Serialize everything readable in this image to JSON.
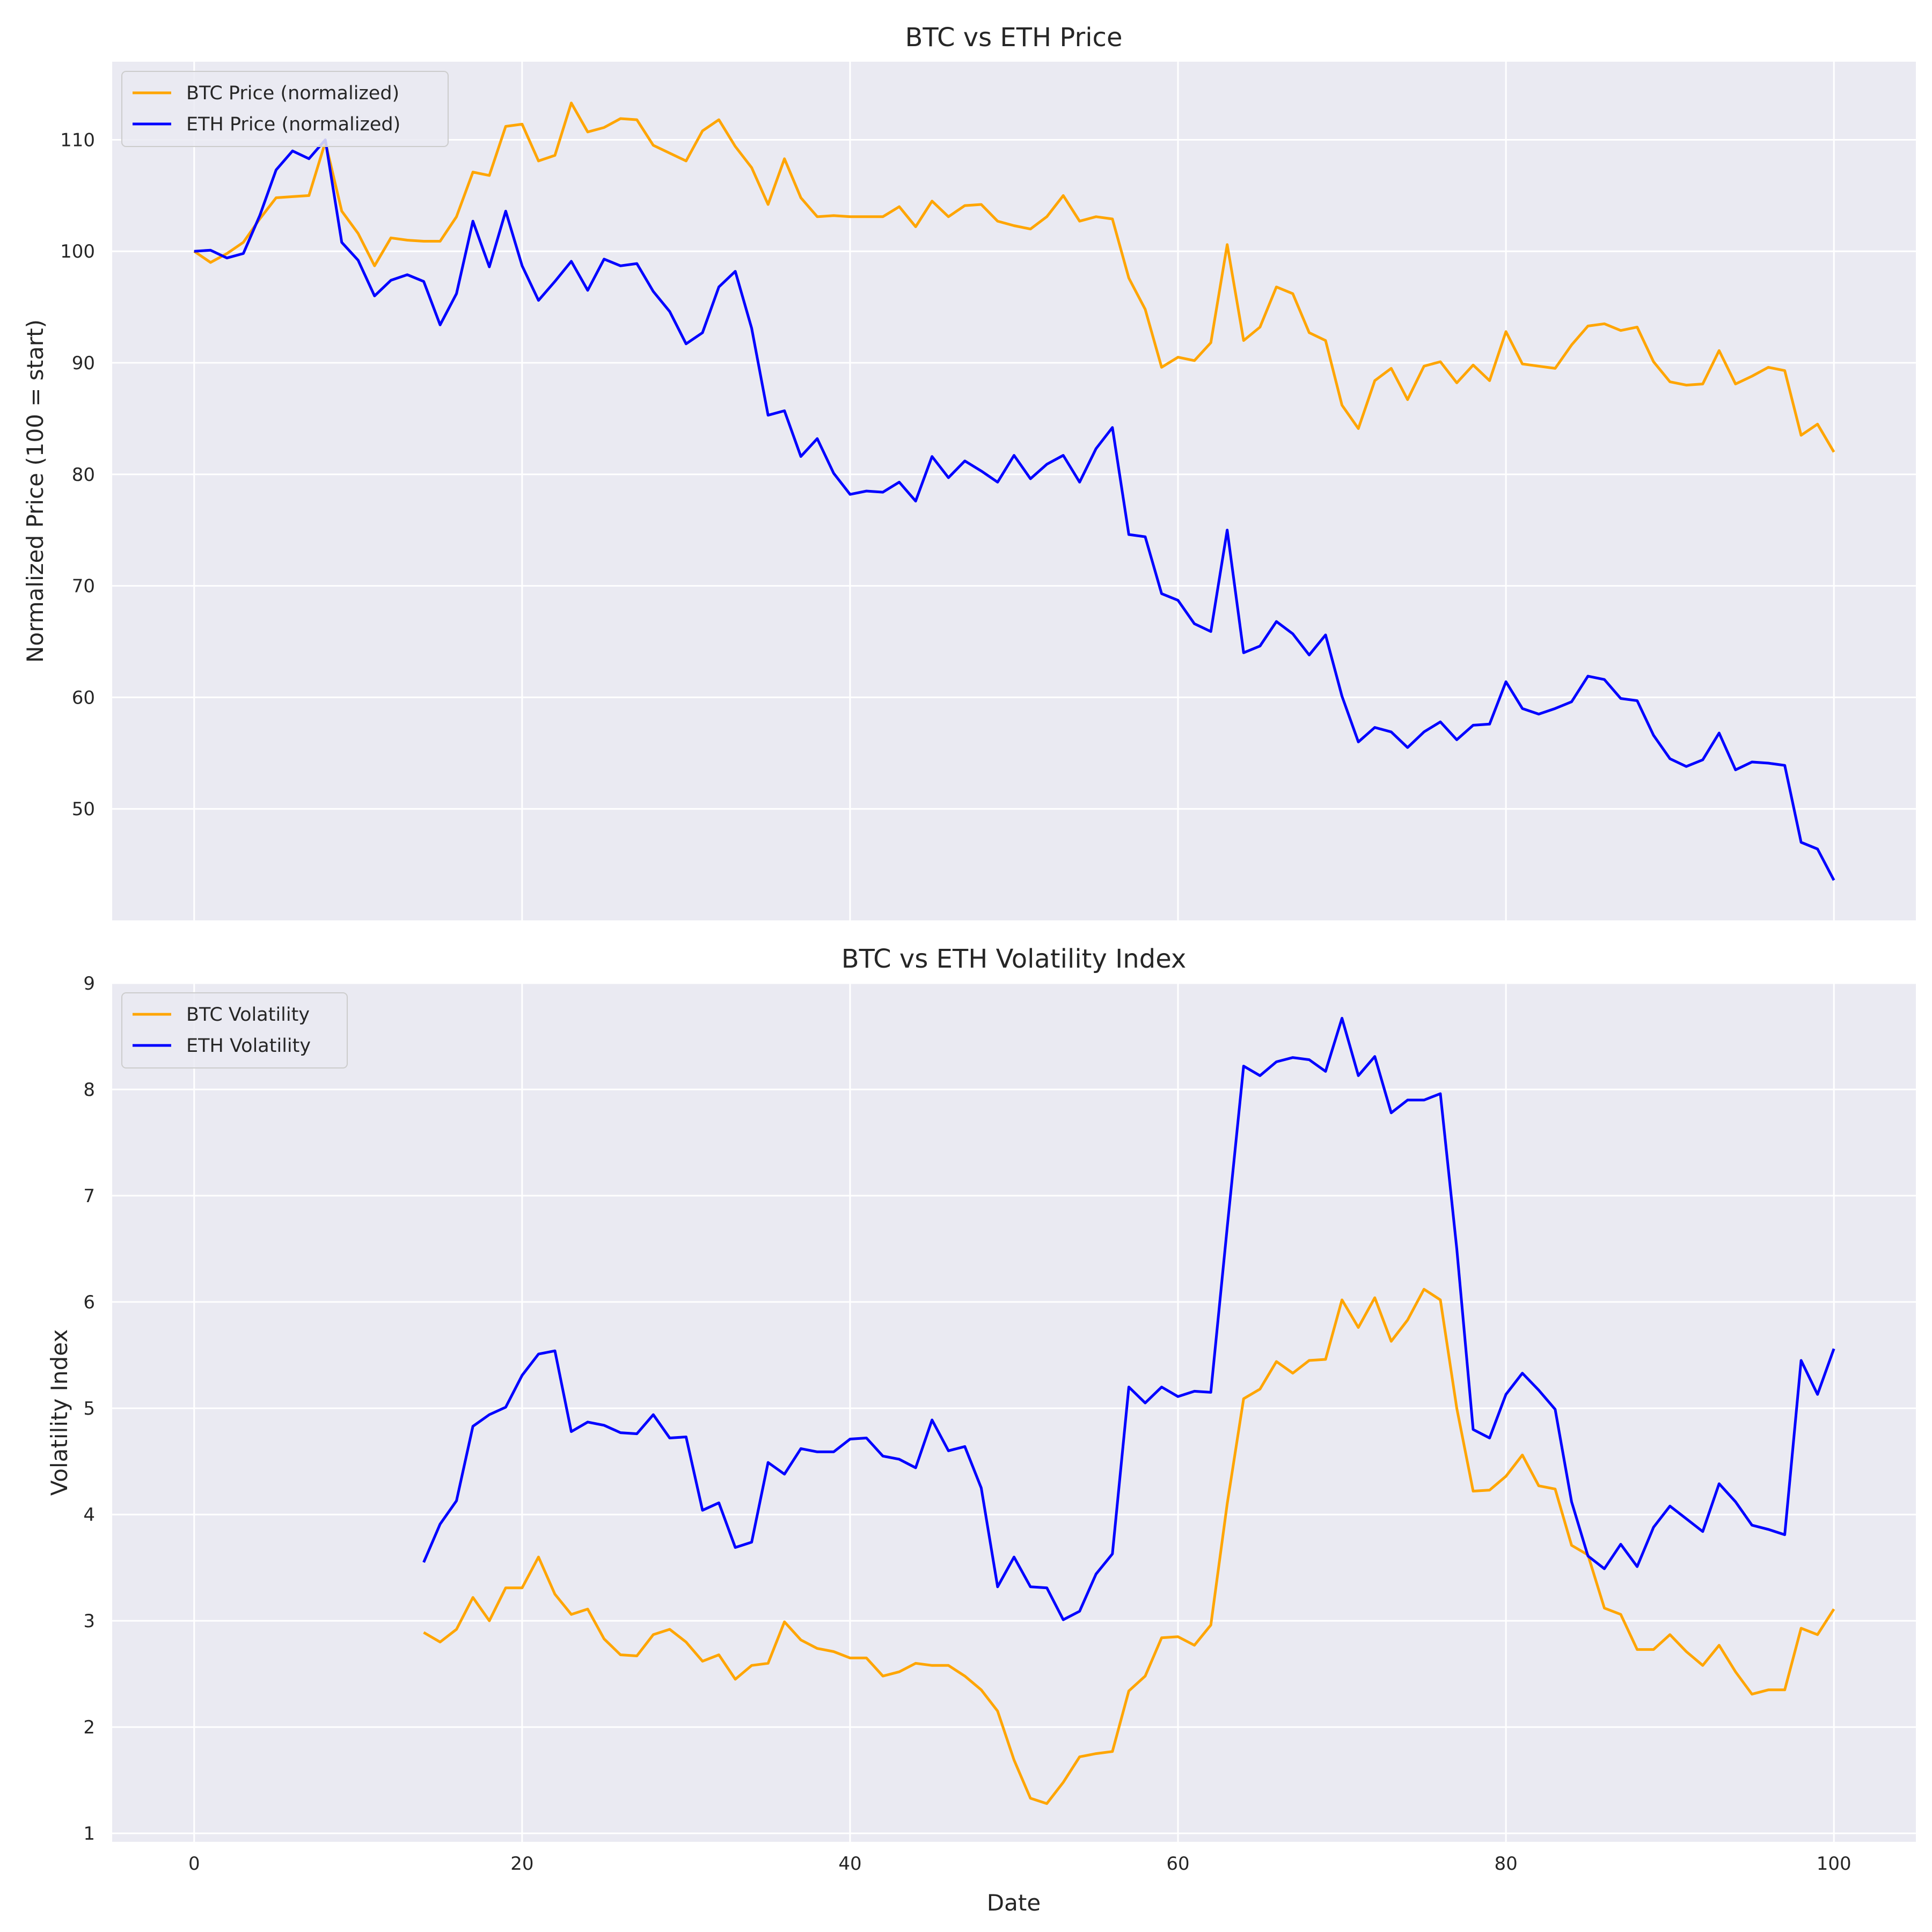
{
  "colors": {
    "btc": "#FFA500",
    "eth": "#0000FF",
    "panel_bg": "#EAEAF2",
    "grid": "#FFFFFF"
  },
  "chart_data": [
    {
      "type": "line",
      "title": "BTC vs ETH Price",
      "xlabel": "",
      "ylabel": "Normalized Price (100 = start)",
      "xlim": [
        -5,
        105
      ],
      "ylim": [
        40,
        117
      ],
      "xticks": [
        0,
        20,
        40,
        60,
        80,
        100
      ],
      "yticks": [
        50,
        60,
        70,
        80,
        90,
        100,
        110
      ],
      "grid": true,
      "legend": "upper left",
      "x_start": 0,
      "series": [
        {
          "name": "BTC Price (normalized)",
          "color": "#FFA500",
          "values": [
            100,
            99,
            99.8,
            100.8,
            102.9,
            104.8,
            104.9,
            105.0,
            109.8,
            103.6,
            101.6,
            98.7,
            101.2,
            101.0,
            100.9,
            100.9,
            103.1,
            107.1,
            106.8,
            111.2,
            111.4,
            108.1,
            108.6,
            113.3,
            110.7,
            111.1,
            111.9,
            111.8,
            109.5,
            108.8,
            108.1,
            110.8,
            111.8,
            109.4,
            107.5,
            104.2,
            108.3,
            104.8,
            103.1,
            103.2,
            103.1,
            103.1,
            103.1,
            104.0,
            102.2,
            104.5,
            103.1,
            104.1,
            104.2,
            102.7,
            102.3,
            102.0,
            103.1,
            105.0,
            102.7,
            103.1,
            102.9,
            97.6,
            94.8,
            89.6,
            90.5,
            90.2,
            91.8,
            100.6,
            92.0,
            93.2,
            96.8,
            96.2,
            92.7,
            92.0,
            86.2,
            84.1,
            88.4,
            89.5,
            86.7,
            89.7,
            90.1,
            88.2,
            89.8,
            88.4,
            92.8,
            89.9,
            89.7,
            89.5,
            91.6,
            93.3,
            93.5,
            92.9,
            93.2,
            90.1,
            88.3,
            88.0,
            88.1,
            91.1,
            88.1,
            88.8,
            89.6,
            89.3,
            83.5,
            84.5,
            82.0
          ]
        },
        {
          "name": "ETH Price (normalized)",
          "color": "#0000FF",
          "values": [
            100,
            100.1,
            99.4,
            99.8,
            103.2,
            107.3,
            109.0,
            108.3,
            110.0,
            100.8,
            99.2,
            96.0,
            97.4,
            97.9,
            97.3,
            93.4,
            96.2,
            102.7,
            98.6,
            103.6,
            98.7,
            95.6,
            97.3,
            99.1,
            96.5,
            99.3,
            98.7,
            98.9,
            96.4,
            94.6,
            91.7,
            92.7,
            96.8,
            98.2,
            93.1,
            85.3,
            85.7,
            81.6,
            83.2,
            80.1,
            78.2,
            78.5,
            78.4,
            79.3,
            77.6,
            81.6,
            79.7,
            81.2,
            80.3,
            79.3,
            81.7,
            79.6,
            80.9,
            81.7,
            79.3,
            82.3,
            84.2,
            74.6,
            74.4,
            69.3,
            68.7,
            66.6,
            65.9,
            75.0,
            64.0,
            64.6,
            66.8,
            65.7,
            63.8,
            65.6,
            60.1,
            56.0,
            57.3,
            56.9,
            55.5,
            56.9,
            57.8,
            56.2,
            57.5,
            57.6,
            61.4,
            59.0,
            58.5,
            59.0,
            59.6,
            61.9,
            61.6,
            59.9,
            59.7,
            56.6,
            54.5,
            53.8,
            54.4,
            56.8,
            53.5,
            54.2,
            54.1,
            53.9,
            47.0,
            46.4,
            43.6
          ]
        }
      ]
    },
    {
      "type": "line",
      "title": "BTC vs ETH Volatility Index",
      "xlabel": "Date",
      "ylabel": "Volatility Index",
      "xlim": [
        -5,
        105
      ],
      "ylim": [
        0.92,
        9.0
      ],
      "xticks": [
        0,
        20,
        40,
        60,
        80,
        100
      ],
      "yticks": [
        1,
        2,
        3,
        4,
        5,
        6,
        7,
        8,
        9
      ],
      "grid": true,
      "legend": "upper left",
      "x_start": 14,
      "series": [
        {
          "name": "BTC Volatility",
          "color": "#FFA500",
          "values": [
            2.89,
            2.8,
            2.92,
            3.22,
            3.0,
            3.31,
            3.31,
            3.6,
            3.25,
            3.06,
            3.11,
            2.83,
            2.68,
            2.67,
            2.87,
            2.92,
            2.8,
            2.62,
            2.68,
            2.45,
            2.58,
            2.6,
            2.99,
            2.82,
            2.74,
            2.71,
            2.65,
            2.65,
            2.48,
            2.52,
            2.6,
            2.58,
            2.58,
            2.48,
            2.35,
            2.15,
            1.69,
            1.33,
            1.28,
            1.48,
            1.72,
            1.75,
            1.77,
            2.34,
            2.48,
            2.84,
            2.85,
            2.77,
            2.96,
            4.1,
            5.09,
            5.18,
            5.44,
            5.33,
            5.45,
            5.46,
            6.02,
            5.76,
            6.04,
            5.63,
            5.83,
            6.12,
            6.02,
            5.0,
            4.22,
            4.23,
            4.36,
            4.56,
            4.27,
            4.24,
            3.71,
            3.62,
            3.12,
            3.06,
            2.73,
            2.73,
            2.87,
            2.71,
            2.58,
            2.77,
            2.52,
            2.31,
            2.35,
            2.35,
            2.93,
            2.87,
            3.11
          ]
        },
        {
          "name": "ETH Volatility",
          "color": "#0000FF",
          "values": [
            3.55,
            3.91,
            4.13,
            4.83,
            4.94,
            5.01,
            5.31,
            5.51,
            5.54,
            4.78,
            4.87,
            4.84,
            4.77,
            4.76,
            4.94,
            4.72,
            4.73,
            4.04,
            4.11,
            3.69,
            3.74,
            4.49,
            4.38,
            4.62,
            4.59,
            4.59,
            4.71,
            4.72,
            4.55,
            4.52,
            4.44,
            4.89,
            4.6,
            4.64,
            4.25,
            3.32,
            3.6,
            3.32,
            3.31,
            3.01,
            3.09,
            3.44,
            3.63,
            5.2,
            5.05,
            5.2,
            5.11,
            5.16,
            5.15,
            6.7,
            8.22,
            8.13,
            8.26,
            8.3,
            8.28,
            8.17,
            8.67,
            8.13,
            8.31,
            7.78,
            7.9,
            7.9,
            7.96,
            6.5,
            4.8,
            4.72,
            5.13,
            5.33,
            5.17,
            4.99,
            4.12,
            3.61,
            3.49,
            3.72,
            3.51,
            3.88,
            4.08,
            3.96,
            3.84,
            4.29,
            4.12,
            3.9,
            3.86,
            3.81,
            5.45,
            5.13,
            5.56
          ]
        }
      ]
    }
  ]
}
